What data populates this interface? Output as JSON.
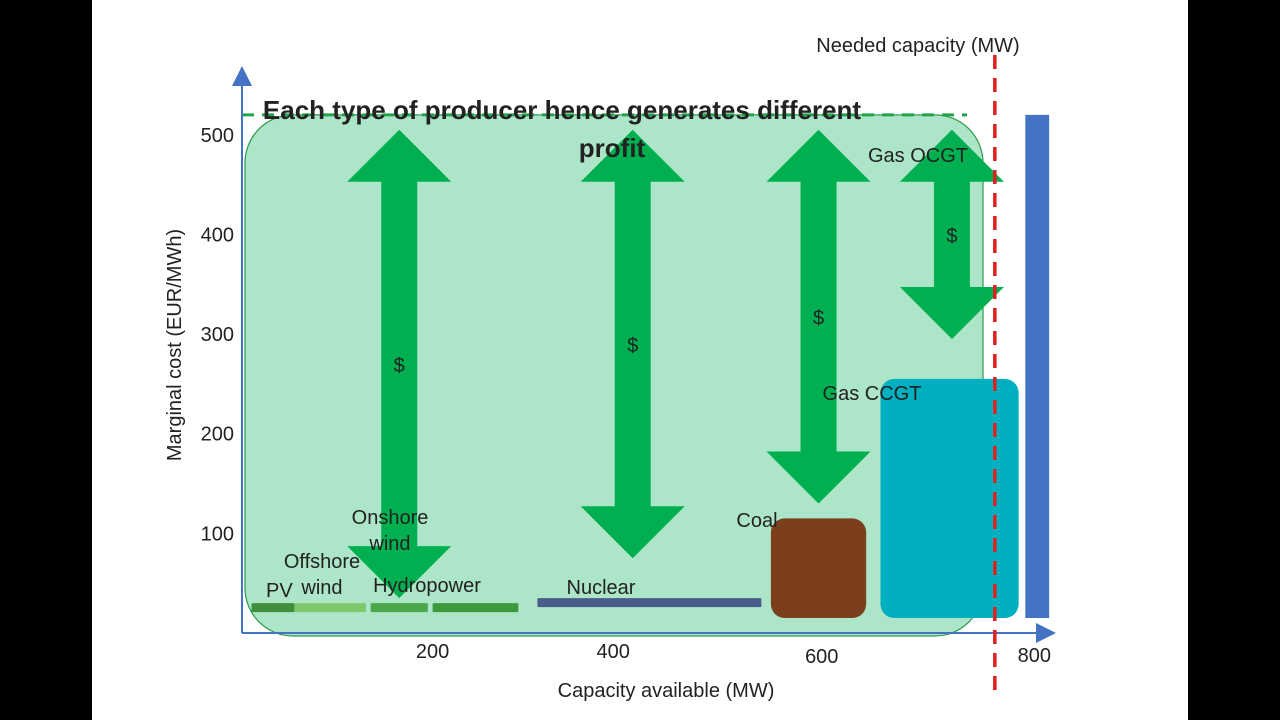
{
  "slide_title": "Each type of producer hence generates different profit",
  "chart_data": {
    "type": "bar",
    "xlabel": "Capacity available (MW)",
    "ylabel": "Marginal cost (EUR/MWh)",
    "xlim": [
      0,
      850
    ],
    "ylim": [
      0,
      560
    ],
    "x_ticks": [
      200,
      400,
      600,
      800
    ],
    "y_ticks": [
      100,
      200,
      300,
      400,
      500
    ],
    "clearing_price": 520,
    "needed_capacity": {
      "label": "Needed capacity (MW)",
      "value": 790
    },
    "producers": [
      {
        "label": "PV",
        "x0": 10,
        "x1": 55,
        "cost": 30,
        "color": "#3f8f3f"
      },
      {
        "label": "Offshore\nwind",
        "x0": 55,
        "x1": 130,
        "cost": 30,
        "color": "#7cc86a"
      },
      {
        "label": "Onshore\nwind",
        "x0": 135,
        "x1": 195,
        "cost": 30,
        "color": "#4aa84a"
      },
      {
        "label": "Hydropower",
        "x0": 200,
        "x1": 290,
        "cost": 30,
        "color": "#3c9a3c"
      },
      {
        "label": "Nuclear",
        "x0": 310,
        "x1": 545,
        "cost": 35,
        "color": "#4a5c8a"
      },
      {
        "label": "Coal",
        "x0": 555,
        "x1": 655,
        "cost": 115,
        "color": "#7b3f1e"
      },
      {
        "label": "Gas CCGT",
        "x0": 670,
        "x1": 815,
        "cost": 255,
        "color": "#00b0c0"
      },
      {
        "label": "Gas OCGT",
        "x0": 822,
        "x1": 847,
        "cost": 520,
        "color": "#4472c4"
      }
    ],
    "profit_arrows": [
      {
        "label": "$",
        "x": 165,
        "top": 505,
        "bottom": 35
      },
      {
        "label": "$",
        "x": 410,
        "top": 505,
        "bottom": 75
      },
      {
        "label": "$",
        "x": 605,
        "top": 505,
        "bottom": 130
      },
      {
        "label": "$",
        "x": 745,
        "top": 505,
        "bottom": 295
      }
    ],
    "profit_area_color": "#a8e4c4",
    "arrow_color": "#00b050"
  }
}
